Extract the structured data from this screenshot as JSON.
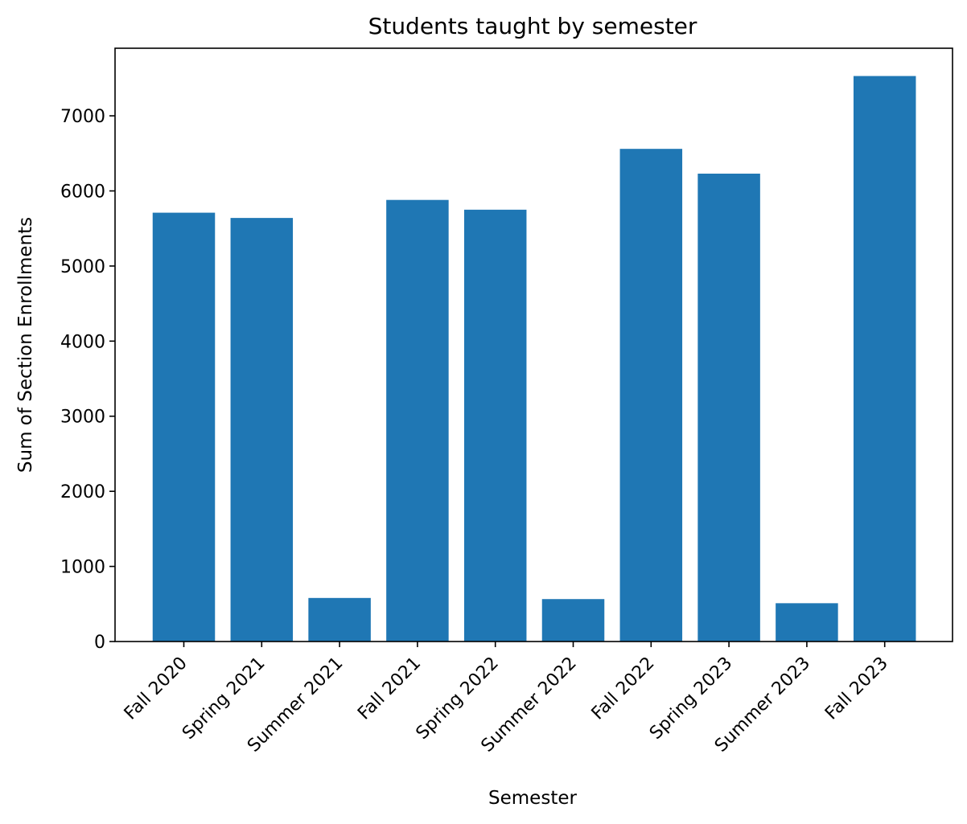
{
  "chart_data": {
    "type": "bar",
    "title": "Students taught by semester",
    "xlabel": "Semester",
    "ylabel": "Sum of Section Enrollments",
    "categories": [
      "Fall 2020",
      "Spring 2021",
      "Summer 2021",
      "Fall 2021",
      "Spring 2022",
      "Summer 2022",
      "Fall 2022",
      "Spring 2023",
      "Summer 2023",
      "Fall 2023"
    ],
    "values": [
      5710,
      5640,
      580,
      5880,
      5750,
      565,
      6560,
      6230,
      510,
      7530
    ],
    "ylim": [
      0,
      7900
    ],
    "yticks": [
      0,
      1000,
      2000,
      3000,
      4000,
      5000,
      6000,
      7000
    ],
    "bar_color": "#1f77b4",
    "grid": false,
    "legend": "none"
  }
}
